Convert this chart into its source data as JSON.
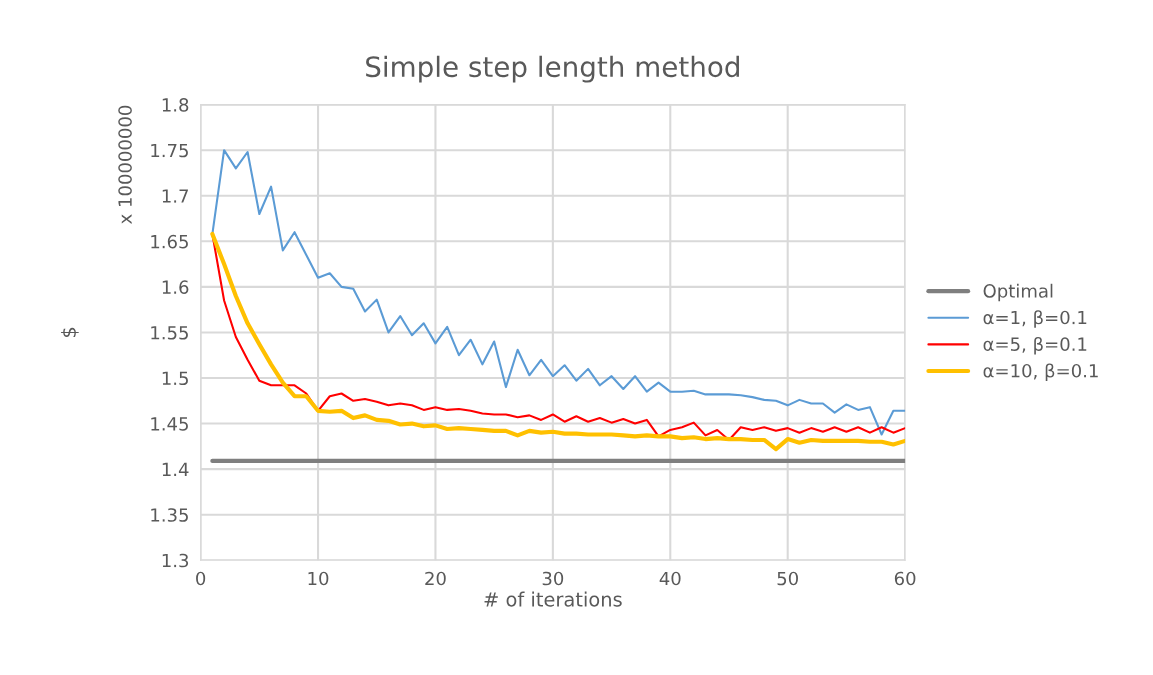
{
  "chart_data": {
    "type": "line",
    "title": "Simple step length method",
    "xlabel": "# of iterations",
    "ylabel": "$",
    "annotations": [
      "x 100000000"
    ],
    "xlim": [
      0,
      60
    ],
    "xticks": [
      0,
      10,
      20,
      30,
      40,
      50,
      60
    ],
    "ylim": [
      1.3,
      1.8
    ],
    "yticks": [
      1.3,
      1.35,
      1.4,
      1.45,
      1.5,
      1.55,
      1.6,
      1.65,
      1.7,
      1.75,
      1.8
    ],
    "grid": true,
    "legend": "right",
    "marker": "none",
    "line_style": "solid",
    "x": [
      1,
      2,
      3,
      4,
      5,
      6,
      7,
      8,
      9,
      10,
      11,
      12,
      13,
      14,
      15,
      16,
      17,
      18,
      19,
      20,
      21,
      22,
      23,
      24,
      25,
      26,
      27,
      28,
      29,
      30,
      31,
      32,
      33,
      34,
      35,
      36,
      37,
      38,
      39,
      40,
      41,
      42,
      43,
      44,
      45,
      46,
      47,
      48,
      49,
      50,
      51,
      52,
      53,
      54,
      55,
      56,
      57,
      58,
      59,
      60
    ],
    "series": [
      {
        "name": "Optimal",
        "color": "#7f7f7f",
        "x": [
          1,
          60
        ],
        "values": [
          1.409,
          1.409
        ]
      },
      {
        "name": "α=1, β=0.1",
        "color": "#5b9bd5",
        "values": [
          1.658,
          1.75,
          1.73,
          1.748,
          1.68,
          1.71,
          1.64,
          1.66,
          1.635,
          1.61,
          1.615,
          1.6,
          1.598,
          1.573,
          1.586,
          1.55,
          1.568,
          1.547,
          1.56,
          1.538,
          1.556,
          1.525,
          1.542,
          1.515,
          1.54,
          1.49,
          1.531,
          1.503,
          1.52,
          1.502,
          1.514,
          1.497,
          1.51,
          1.492,
          1.502,
          1.488,
          1.502,
          1.485,
          1.495,
          1.485,
          1.485,
          1.486,
          1.482,
          1.482,
          1.482,
          1.481,
          1.479,
          1.476,
          1.475,
          1.47,
          1.476,
          1.472,
          1.472,
          1.462,
          1.471,
          1.465,
          1.468,
          1.438,
          1.464,
          1.464
        ]
      },
      {
        "name": "α=5, β=0.1",
        "color": "#ff0000",
        "values": [
          1.658,
          1.585,
          1.545,
          1.52,
          1.497,
          1.492,
          1.492,
          1.492,
          1.483,
          1.464,
          1.48,
          1.483,
          1.475,
          1.477,
          1.474,
          1.47,
          1.472,
          1.47,
          1.465,
          1.468,
          1.465,
          1.466,
          1.464,
          1.461,
          1.46,
          1.46,
          1.457,
          1.459,
          1.454,
          1.46,
          1.452,
          1.458,
          1.452,
          1.456,
          1.451,
          1.455,
          1.45,
          1.454,
          1.436,
          1.443,
          1.446,
          1.451,
          1.437,
          1.443,
          1.432,
          1.446,
          1.443,
          1.446,
          1.442,
          1.445,
          1.44,
          1.445,
          1.441,
          1.446,
          1.441,
          1.446,
          1.44,
          1.446,
          1.44,
          1.445
        ]
      },
      {
        "name": "α=10, β=0.1",
        "color": "#ffc000",
        "values": [
          1.658,
          1.625,
          1.59,
          1.56,
          1.537,
          1.515,
          1.495,
          1.48,
          1.48,
          1.464,
          1.463,
          1.464,
          1.456,
          1.459,
          1.454,
          1.453,
          1.449,
          1.45,
          1.447,
          1.448,
          1.444,
          1.445,
          1.444,
          1.443,
          1.442,
          1.442,
          1.437,
          1.442,
          1.44,
          1.441,
          1.439,
          1.439,
          1.438,
          1.438,
          1.438,
          1.437,
          1.436,
          1.437,
          1.436,
          1.436,
          1.434,
          1.435,
          1.433,
          1.434,
          1.433,
          1.433,
          1.432,
          1.432,
          1.422,
          1.433,
          1.429,
          1.432,
          1.431,
          1.431,
          1.431,
          1.431,
          1.43,
          1.43,
          1.427,
          1.431
        ]
      }
    ]
  }
}
